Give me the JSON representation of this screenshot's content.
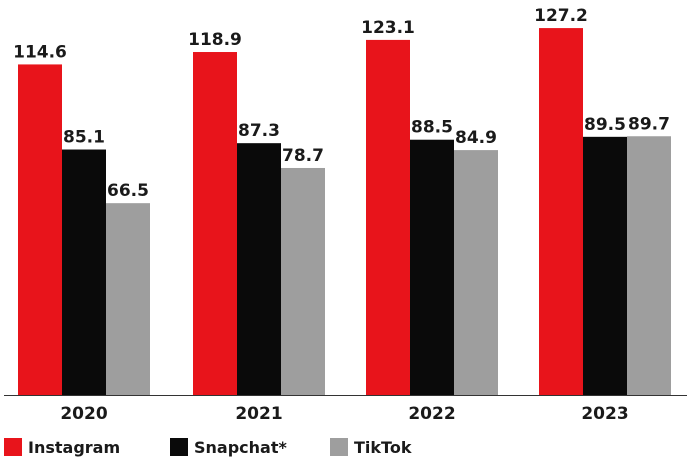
{
  "chart_data": {
    "type": "bar",
    "categories": [
      "2020",
      "2021",
      "2022",
      "2023"
    ],
    "series": [
      {
        "name": "Instagram",
        "values": [
          114.6,
          118.9,
          123.1,
          127.2
        ],
        "color": "#e8141b"
      },
      {
        "name": "Snapchat*",
        "values": [
          85.1,
          87.3,
          88.5,
          89.5
        ],
        "color": "#0a0a0a"
      },
      {
        "name": "TikTok",
        "values": [
          66.5,
          78.7,
          84.9,
          89.7
        ],
        "color": "#9e9e9e"
      }
    ],
    "ylim": [
      0,
      130
    ],
    "grid": false,
    "legend_position": "bottom-left",
    "data_labels": true
  }
}
